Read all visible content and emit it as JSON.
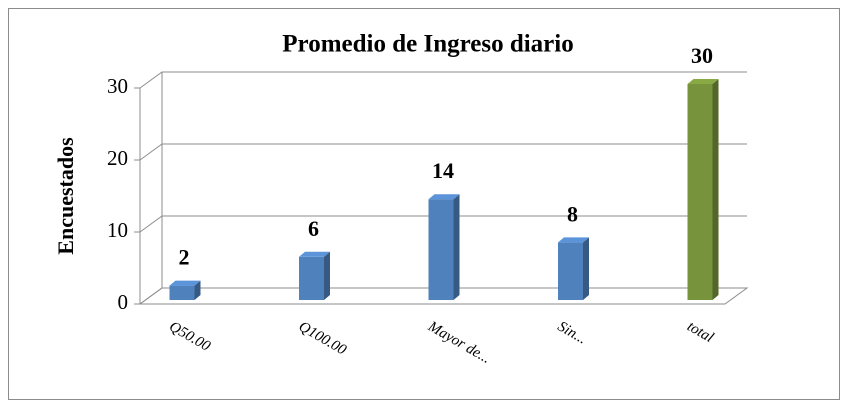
{
  "chart_data": {
    "type": "bar3d",
    "title": "Promedio de Ingreso diario",
    "ylabel": "Encuestados",
    "categories": [
      "Q50.00",
      "Q100.00",
      "Mayor de...",
      "Sin...",
      "total"
    ],
    "values": [
      2,
      6,
      14,
      8,
      30
    ],
    "colors": [
      "#4f81bd",
      "#4f81bd",
      "#4f81bd",
      "#4f81bd",
      "#77933c"
    ],
    "ylim": [
      0,
      30
    ],
    "yticks": [
      0,
      10,
      20,
      30
    ],
    "grid": true
  }
}
